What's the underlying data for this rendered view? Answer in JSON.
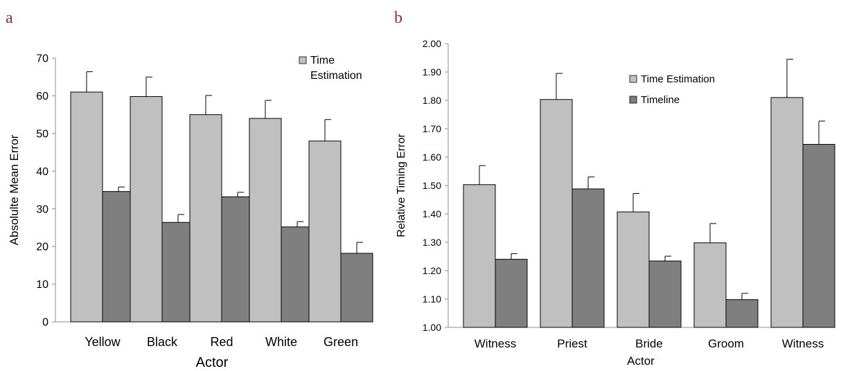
{
  "chart_data": [
    {
      "type": "bar",
      "panel_label": "a",
      "categories": [
        "Yellow",
        "Black",
        "Red",
        "White",
        "Green"
      ],
      "series": [
        {
          "name_lines": [
            "Time",
            "Estimation"
          ],
          "color": "#c0c0c0",
          "values": [
            61.0,
            59.8,
            55.0,
            54.0,
            48.0
          ],
          "error": [
            5.4,
            5.2,
            5.1,
            4.8,
            5.7
          ]
        },
        {
          "name_lines": [],
          "color": "#7f7f7f",
          "values": [
            34.6,
            26.4,
            33.2,
            25.2,
            18.2
          ],
          "error": [
            1.2,
            2.1,
            1.2,
            1.4,
            2.9
          ]
        }
      ],
      "xlabel": "Actor",
      "ylabel": "Absolulte Mean Error",
      "ylim": [
        0,
        70
      ],
      "yticks": [
        "0",
        "10",
        "20",
        "30",
        "40",
        "50",
        "60",
        "70"
      ],
      "grid": false,
      "legend_position": "top-right"
    },
    {
      "type": "bar",
      "panel_label": "b",
      "categories": [
        "Witness",
        "Priest",
        "Bride",
        "Groom",
        "Witness"
      ],
      "series": [
        {
          "name_lines": [
            "Time Estimation"
          ],
          "color": "#c0c0c0",
          "values": [
            1.503,
            1.803,
            1.407,
            1.298,
            1.81
          ],
          "error": [
            0.067,
            0.092,
            0.065,
            0.068,
            0.135
          ]
        },
        {
          "name_lines": [
            "Timeline"
          ],
          "color": "#7f7f7f",
          "values": [
            1.24,
            1.488,
            1.234,
            1.098,
            1.645
          ],
          "error": [
            0.02,
            0.042,
            0.017,
            0.022,
            0.082
          ]
        }
      ],
      "xlabel": "Actor",
      "ylabel": "Relative Timing Error",
      "ylim": [
        1.0,
        2.0
      ],
      "yticks": [
        "1.00",
        "1.10",
        "1.20",
        "1.30",
        "1.40",
        "1.50",
        "1.60",
        "1.70",
        "1.80",
        "1.90",
        "2.00"
      ],
      "grid": false,
      "legend_position": "top-center"
    }
  ]
}
